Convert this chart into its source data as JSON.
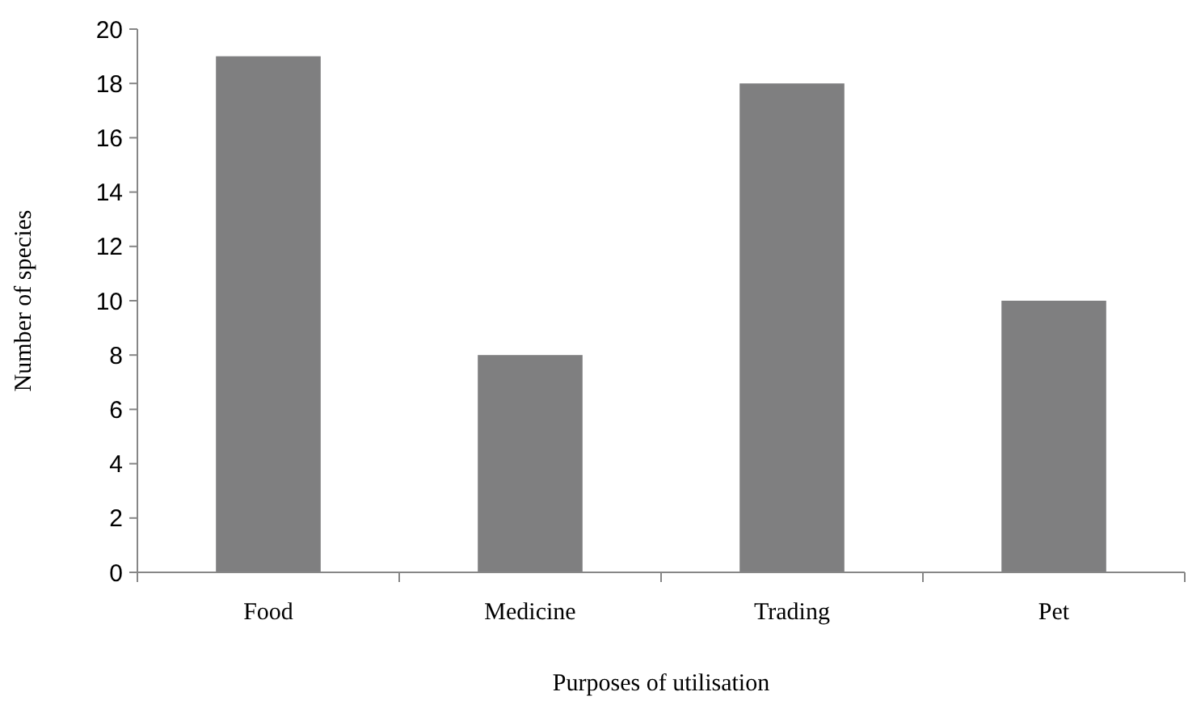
{
  "chart_data": {
    "type": "bar",
    "xlabel": "Purposes of utilisation",
    "ylabel": "Number of species",
    "categories": [
      "Food",
      "Medicine",
      "Trading",
      "Pet"
    ],
    "values": [
      19,
      8,
      18,
      10
    ],
    "color": "#7f7f80",
    "ylim": [
      0,
      20
    ],
    "yticks": [
      0,
      2,
      4,
      6,
      8,
      10,
      12,
      14,
      16,
      18,
      20
    ],
    "grid": false
  }
}
